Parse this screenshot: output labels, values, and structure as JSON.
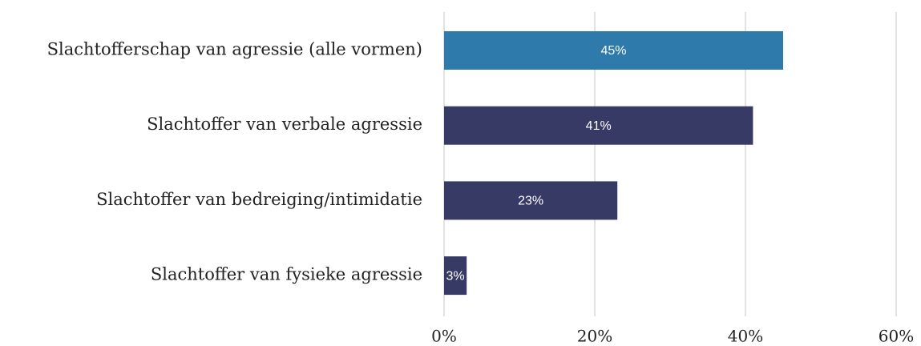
{
  "chart_data": {
    "type": "bar",
    "orientation": "horizontal",
    "categories": [
      "Slachtofferschap van agressie (alle vormen)",
      "Slachtoffer van verbale agressie",
      "Slachtoffer van bedreiging/intimidatie",
      "Slachtoffer van fysieke agressie"
    ],
    "values": [
      45,
      41,
      23,
      3
    ],
    "value_labels": [
      "45%",
      "41%",
      "23%",
      "3%"
    ],
    "colors": [
      "#2e7aab",
      "#383a66",
      "#383a66",
      "#383a66"
    ],
    "xlim": [
      0,
      60
    ],
    "xticks": [
      {
        "value": 0,
        "label": "0%"
      },
      {
        "value": 20,
        "label": "20%"
      },
      {
        "value": 40,
        "label": "40%"
      },
      {
        "value": 60,
        "label": "60%"
      }
    ],
    "grid": true
  }
}
